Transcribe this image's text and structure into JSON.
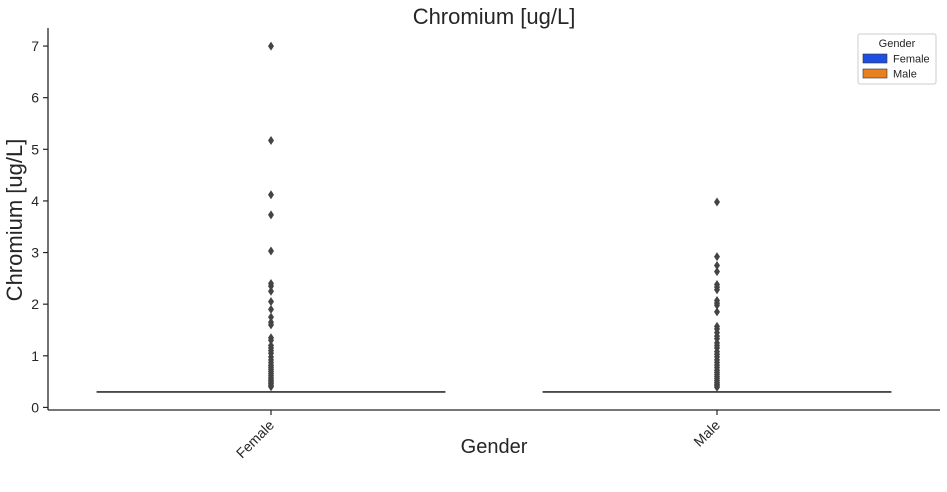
{
  "chart_data": {
    "type": "box",
    "title": "Chromium [ug/L]",
    "xlabel": "Gender",
    "ylabel": "Chromium [ug/L]",
    "ylim": [
      -0.05,
      7.35
    ],
    "yticks": [
      0,
      1,
      2,
      3,
      4,
      5,
      6,
      7
    ],
    "categories": [
      "Female",
      "Male"
    ],
    "legend": {
      "title": "Gender",
      "position": "top-right",
      "entries": [
        {
          "label": "Female",
          "color": "#1f4fe0"
        },
        {
          "label": "Male",
          "color": "#e8801f"
        }
      ]
    },
    "series": [
      {
        "category": "Female",
        "median": 0.3,
        "q1": 0.3,
        "q3": 0.3,
        "whisker_low": 0.3,
        "whisker_high": 0.3,
        "outliers": [
          7.0,
          5.17,
          4.12,
          3.73,
          3.03,
          2.4,
          2.35,
          2.25,
          2.05,
          1.9,
          1.75,
          1.65,
          1.6,
          1.35,
          1.3,
          1.2,
          1.15,
          1.1,
          1.05,
          0.98,
          0.92,
          0.87,
          0.82,
          0.78,
          0.74,
          0.7,
          0.66,
          0.62,
          0.58,
          0.55,
          0.52,
          0.49,
          0.46,
          0.43,
          0.4
        ]
      },
      {
        "category": "Male",
        "median": 0.3,
        "q1": 0.3,
        "q3": 0.3,
        "whisker_low": 0.3,
        "whisker_high": 0.3,
        "outliers": [
          3.98,
          2.92,
          2.75,
          2.63,
          2.38,
          2.33,
          2.28,
          2.07,
          2.02,
          1.98,
          1.85,
          1.57,
          1.52,
          1.45,
          1.38,
          1.33,
          1.25,
          1.2,
          1.15,
          1.08,
          1.03,
          0.98,
          0.92,
          0.87,
          0.82,
          0.77,
          0.72,
          0.68,
          0.64,
          0.6,
          0.56,
          0.52,
          0.48,
          0.45,
          0.42,
          0.39
        ]
      }
    ],
    "colors": {
      "box_line": "#3b3b3b",
      "outlier": "#444444",
      "axis": "#262626"
    }
  }
}
